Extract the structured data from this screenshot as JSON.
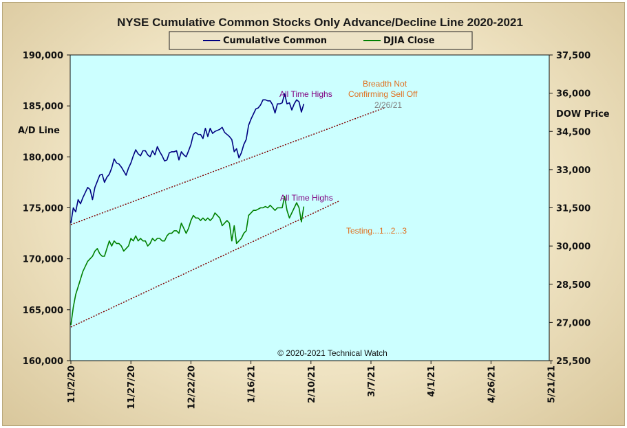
{
  "chart_data": {
    "type": "line",
    "title": "NYSE Cumulative  Common Stocks Only Advance/Decline  Line 2020-2021",
    "ylabel_left": "A/D Line",
    "ylabel_right": "DOW Price",
    "ylim_left": [
      160000,
      190000
    ],
    "ylim_right": [
      25500,
      37500
    ],
    "yticks_left": [
      "190,000",
      "185,000",
      "180,000",
      "175,000",
      "170,000",
      "165,000",
      "160,000"
    ],
    "yticks_right": [
      "37,500",
      "36,000",
      "34,500",
      "33,000",
      "31,500",
      "30,000",
      "28,500",
      "27,000",
      "25,500"
    ],
    "x_ticks": [
      "11/2/20",
      "11/27/20",
      "12/22/20",
      "1/16/21",
      "2/10/21",
      "3/7/21",
      "4/1/21",
      "4/26/21",
      "5/21/21"
    ],
    "grid": false,
    "legend_position": "top-center",
    "credit": "© 2020-2021  Technical Watch",
    "colors": {
      "plot_bg": "#ccffff",
      "cumulative": "#000080",
      "djia": "#008000",
      "trend": "#800000",
      "purple_text": "#800080",
      "orange_text": "#e07020",
      "gray_text": "#808080"
    },
    "series": [
      {
        "name": "Cumulative Common",
        "axis": "left",
        "points": [
          [
            0,
            173500
          ],
          [
            1,
            175000
          ],
          [
            2,
            174600
          ],
          [
            3,
            175800
          ],
          [
            4,
            175400
          ],
          [
            5,
            176000
          ],
          [
            6,
            176500
          ],
          [
            7,
            177000
          ],
          [
            8,
            176800
          ],
          [
            9,
            175800
          ],
          [
            10,
            177000
          ],
          [
            11,
            177600
          ],
          [
            12,
            178200
          ],
          [
            13,
            178300
          ],
          [
            14,
            177500
          ],
          [
            15,
            178000
          ],
          [
            16,
            178300
          ],
          [
            17,
            178900
          ],
          [
            18,
            179800
          ],
          [
            19,
            179400
          ],
          [
            20,
            179300
          ],
          [
            21,
            179000
          ],
          [
            22,
            178600
          ],
          [
            23,
            178200
          ],
          [
            24,
            178900
          ],
          [
            25,
            179400
          ],
          [
            26,
            180100
          ],
          [
            27,
            180700
          ],
          [
            28,
            180300
          ],
          [
            29,
            180100
          ],
          [
            30,
            180600
          ],
          [
            31,
            180600
          ],
          [
            32,
            180200
          ],
          [
            33,
            180000
          ],
          [
            34,
            180600
          ],
          [
            35,
            180200
          ],
          [
            36,
            181000
          ],
          [
            37,
            180500
          ],
          [
            38,
            180100
          ],
          [
            39,
            179600
          ],
          [
            40,
            179700
          ],
          [
            41,
            180400
          ],
          [
            42,
            180500
          ],
          [
            43,
            180500
          ],
          [
            44,
            180600
          ],
          [
            45,
            179700
          ],
          [
            46,
            180500
          ],
          [
            47,
            180200
          ],
          [
            48,
            180000
          ],
          [
            49,
            180600
          ],
          [
            50,
            181200
          ],
          [
            51,
            182200
          ],
          [
            52,
            182400
          ],
          [
            53,
            182200
          ],
          [
            54,
            182200
          ],
          [
            55,
            181800
          ],
          [
            56,
            182800
          ],
          [
            57,
            182000
          ],
          [
            58,
            182800
          ],
          [
            59,
            182300
          ],
          [
            60,
            182500
          ],
          [
            61,
            182600
          ],
          [
            62,
            182700
          ],
          [
            63,
            182900
          ],
          [
            64,
            182400
          ],
          [
            65,
            182200
          ],
          [
            66,
            182000
          ],
          [
            67,
            181700
          ],
          [
            68,
            180500
          ],
          [
            69,
            180800
          ],
          [
            70,
            179900
          ],
          [
            71,
            180400
          ],
          [
            72,
            181200
          ],
          [
            73,
            181700
          ],
          [
            74,
            183100
          ],
          [
            75,
            183700
          ],
          [
            76,
            184200
          ],
          [
            77,
            184700
          ],
          [
            78,
            184800
          ],
          [
            79,
            185100
          ],
          [
            80,
            185600
          ],
          [
            81,
            185600
          ],
          [
            82,
            185500
          ],
          [
            83,
            185500
          ],
          [
            84,
            185100
          ],
          [
            85,
            184300
          ],
          [
            86,
            185200
          ],
          [
            87,
            185200
          ],
          [
            88,
            185300
          ],
          [
            89,
            186200
          ],
          [
            90,
            185200
          ],
          [
            91,
            185300
          ],
          [
            92,
            184600
          ],
          [
            93,
            185200
          ],
          [
            94,
            185600
          ],
          [
            95,
            185400
          ],
          [
            96,
            184400
          ],
          [
            97,
            185200
          ]
        ]
      },
      {
        "name": "DJIA Close",
        "axis": "right",
        "points": [
          [
            0,
            26900
          ],
          [
            1,
            27600
          ],
          [
            2,
            28100
          ],
          [
            3,
            28400
          ],
          [
            4,
            28700
          ],
          [
            5,
            29000
          ],
          [
            6,
            29200
          ],
          [
            7,
            29400
          ],
          [
            8,
            29500
          ],
          [
            9,
            29600
          ],
          [
            10,
            29800
          ],
          [
            11,
            29900
          ],
          [
            12,
            29700
          ],
          [
            13,
            29600
          ],
          [
            14,
            29600
          ],
          [
            15,
            29900
          ],
          [
            16,
            30200
          ],
          [
            17,
            30000
          ],
          [
            18,
            30200
          ],
          [
            19,
            30100
          ],
          [
            20,
            30100
          ],
          [
            21,
            30000
          ],
          [
            22,
            29800
          ],
          [
            23,
            29900
          ],
          [
            24,
            30000
          ],
          [
            25,
            30300
          ],
          [
            26,
            30200
          ],
          [
            27,
            30400
          ],
          [
            28,
            30200
          ],
          [
            29,
            30300
          ],
          [
            30,
            30200
          ],
          [
            31,
            30200
          ],
          [
            32,
            30000
          ],
          [
            33,
            30100
          ],
          [
            34,
            30300
          ],
          [
            35,
            30200
          ],
          [
            36,
            30300
          ],
          [
            37,
            30300
          ],
          [
            38,
            30200
          ],
          [
            39,
            30200
          ],
          [
            40,
            30400
          ],
          [
            41,
            30500
          ],
          [
            42,
            30500
          ],
          [
            43,
            30600
          ],
          [
            44,
            30600
          ],
          [
            45,
            30500
          ],
          [
            46,
            30900
          ],
          [
            47,
            30700
          ],
          [
            48,
            30500
          ],
          [
            49,
            30700
          ],
          [
            50,
            31000
          ],
          [
            51,
            31200
          ],
          [
            52,
            31100
          ],
          [
            53,
            31100
          ],
          [
            54,
            31000
          ],
          [
            55,
            31100
          ],
          [
            56,
            31000
          ],
          [
            57,
            31100
          ],
          [
            58,
            31000
          ],
          [
            59,
            31100
          ],
          [
            60,
            31300
          ],
          [
            61,
            31200
          ],
          [
            62,
            31100
          ],
          [
            63,
            30800
          ],
          [
            64,
            30900
          ],
          [
            65,
            31000
          ],
          [
            66,
            30900
          ],
          [
            67,
            30200
          ],
          [
            68,
            30800
          ],
          [
            69,
            30100
          ],
          [
            70,
            30200
          ],
          [
            71,
            30300
          ],
          [
            72,
            30500
          ],
          [
            73,
            30600
          ],
          [
            74,
            31200
          ],
          [
            75,
            31300
          ],
          [
            76,
            31400
          ],
          [
            77,
            31400
          ],
          [
            78,
            31450
          ],
          [
            79,
            31500
          ],
          [
            80,
            31500
          ],
          [
            81,
            31550
          ],
          [
            82,
            31500
          ],
          [
            83,
            31600
          ],
          [
            84,
            31500
          ],
          [
            85,
            31400
          ],
          [
            86,
            31500
          ],
          [
            87,
            31500
          ],
          [
            88,
            31500
          ],
          [
            89,
            31950
          ],
          [
            90,
            31400
          ],
          [
            91,
            31100
          ],
          [
            92,
            31300
          ],
          [
            93,
            31500
          ],
          [
            94,
            31700
          ],
          [
            95,
            31500
          ],
          [
            96,
            30950
          ],
          [
            97,
            31550
          ]
        ]
      }
    ],
    "trendlines": [
      {
        "axis": "left",
        "x": [
          0,
          131
        ],
        "y": [
          173350,
          184850
        ]
      },
      {
        "axis": "left",
        "x": [
          0,
          112
        ],
        "y": [
          163300,
          175700
        ]
      }
    ],
    "annotations": [
      {
        "text": "All Time Highs",
        "color": "purple"
      },
      {
        "text": "Breadth Not",
        "color": "orange"
      },
      {
        "text": "Confirming  Sell Off",
        "color": "orange"
      },
      {
        "text": "2/26/21",
        "color": "gray"
      },
      {
        "text": "All Time Highs",
        "color": "purple"
      },
      {
        "text": "Testing...1...2...3",
        "color": "orange"
      }
    ]
  }
}
